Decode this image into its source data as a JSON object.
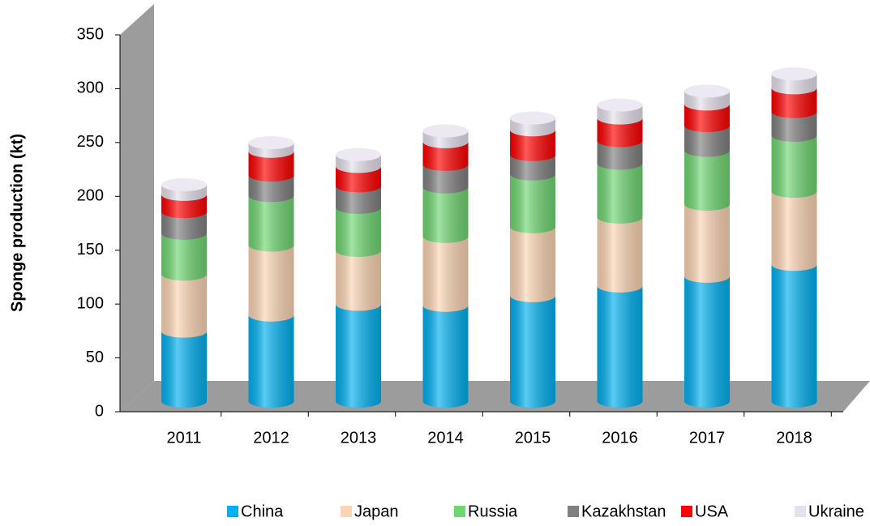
{
  "chart_data": {
    "type": "bar3d_stacked",
    "ylabel": "Sponge production (kt)",
    "categories": [
      "2011",
      "2012",
      "2013",
      "2014",
      "2015",
      "2016",
      "2017",
      "2018"
    ],
    "series": [
      {
        "name": "China",
        "color": "#00b0f0",
        "values": [
          65,
          80,
          90,
          89,
          98,
          107,
          116,
          127
        ]
      },
      {
        "name": "Japan",
        "color": "#fcd5b4",
        "values": [
          53,
          65,
          50,
          64,
          64,
          64,
          67,
          68
        ]
      },
      {
        "name": "Russia",
        "color": "#6fd672",
        "values": [
          38,
          46,
          40,
          46,
          49,
          50,
          50,
          52
        ]
      },
      {
        "name": "Kazakhstan",
        "color": "#808080",
        "values": [
          20,
          19,
          20,
          21,
          18,
          21,
          23,
          22
        ]
      },
      {
        "name": "USA",
        "color": "#ff0000",
        "values": [
          16,
          22,
          18,
          21,
          23,
          21,
          20,
          22
        ]
      },
      {
        "name": "Ukraine",
        "color": "#e6e0ec",
        "values": [
          9,
          8,
          11,
          10,
          11,
          12,
          12,
          13
        ]
      }
    ],
    "ylim": [
      0,
      350
    ],
    "yticks": [
      0,
      50,
      100,
      150,
      200,
      250,
      300,
      350
    ]
  }
}
